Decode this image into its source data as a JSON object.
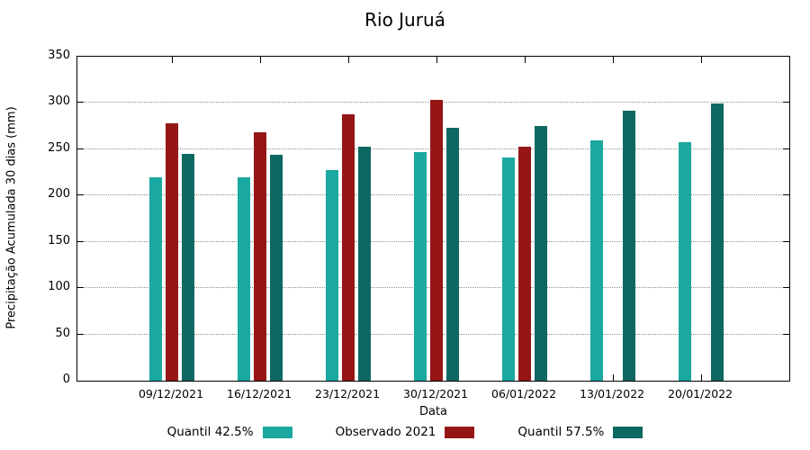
{
  "chart_data": {
    "type": "bar",
    "title": "Rio Juruá",
    "xlabel": "Data",
    "ylabel": "Precipitação Acumulada 30 dias (mm)",
    "ylim": [
      0,
      350
    ],
    "yticks": [
      0,
      50,
      100,
      150,
      200,
      250,
      300,
      350
    ],
    "grid": "dotted-horizontal",
    "legend_position": "bottom",
    "categories": [
      "09/12/2021",
      "16/12/2021",
      "23/12/2021",
      "30/12/2021",
      "06/01/2022",
      "13/01/2022",
      "20/01/2022"
    ],
    "series": [
      {
        "name": "Quantil 42.5%",
        "color": "#1aa8a0",
        "values": [
          220,
          220,
          228,
          247,
          241,
          260,
          258
        ]
      },
      {
        "name": "Observado 2021",
        "color": "#961616",
        "values": [
          278,
          268,
          288,
          303,
          253,
          null,
          null
        ]
      },
      {
        "name": "Quantil 57.5%",
        "color": "#0e6862",
        "values": [
          245,
          244,
          253,
          273,
          275,
          292,
          299
        ]
      }
    ],
    "axis_color": "#000000",
    "grid_color": "#8f8f8f"
  }
}
